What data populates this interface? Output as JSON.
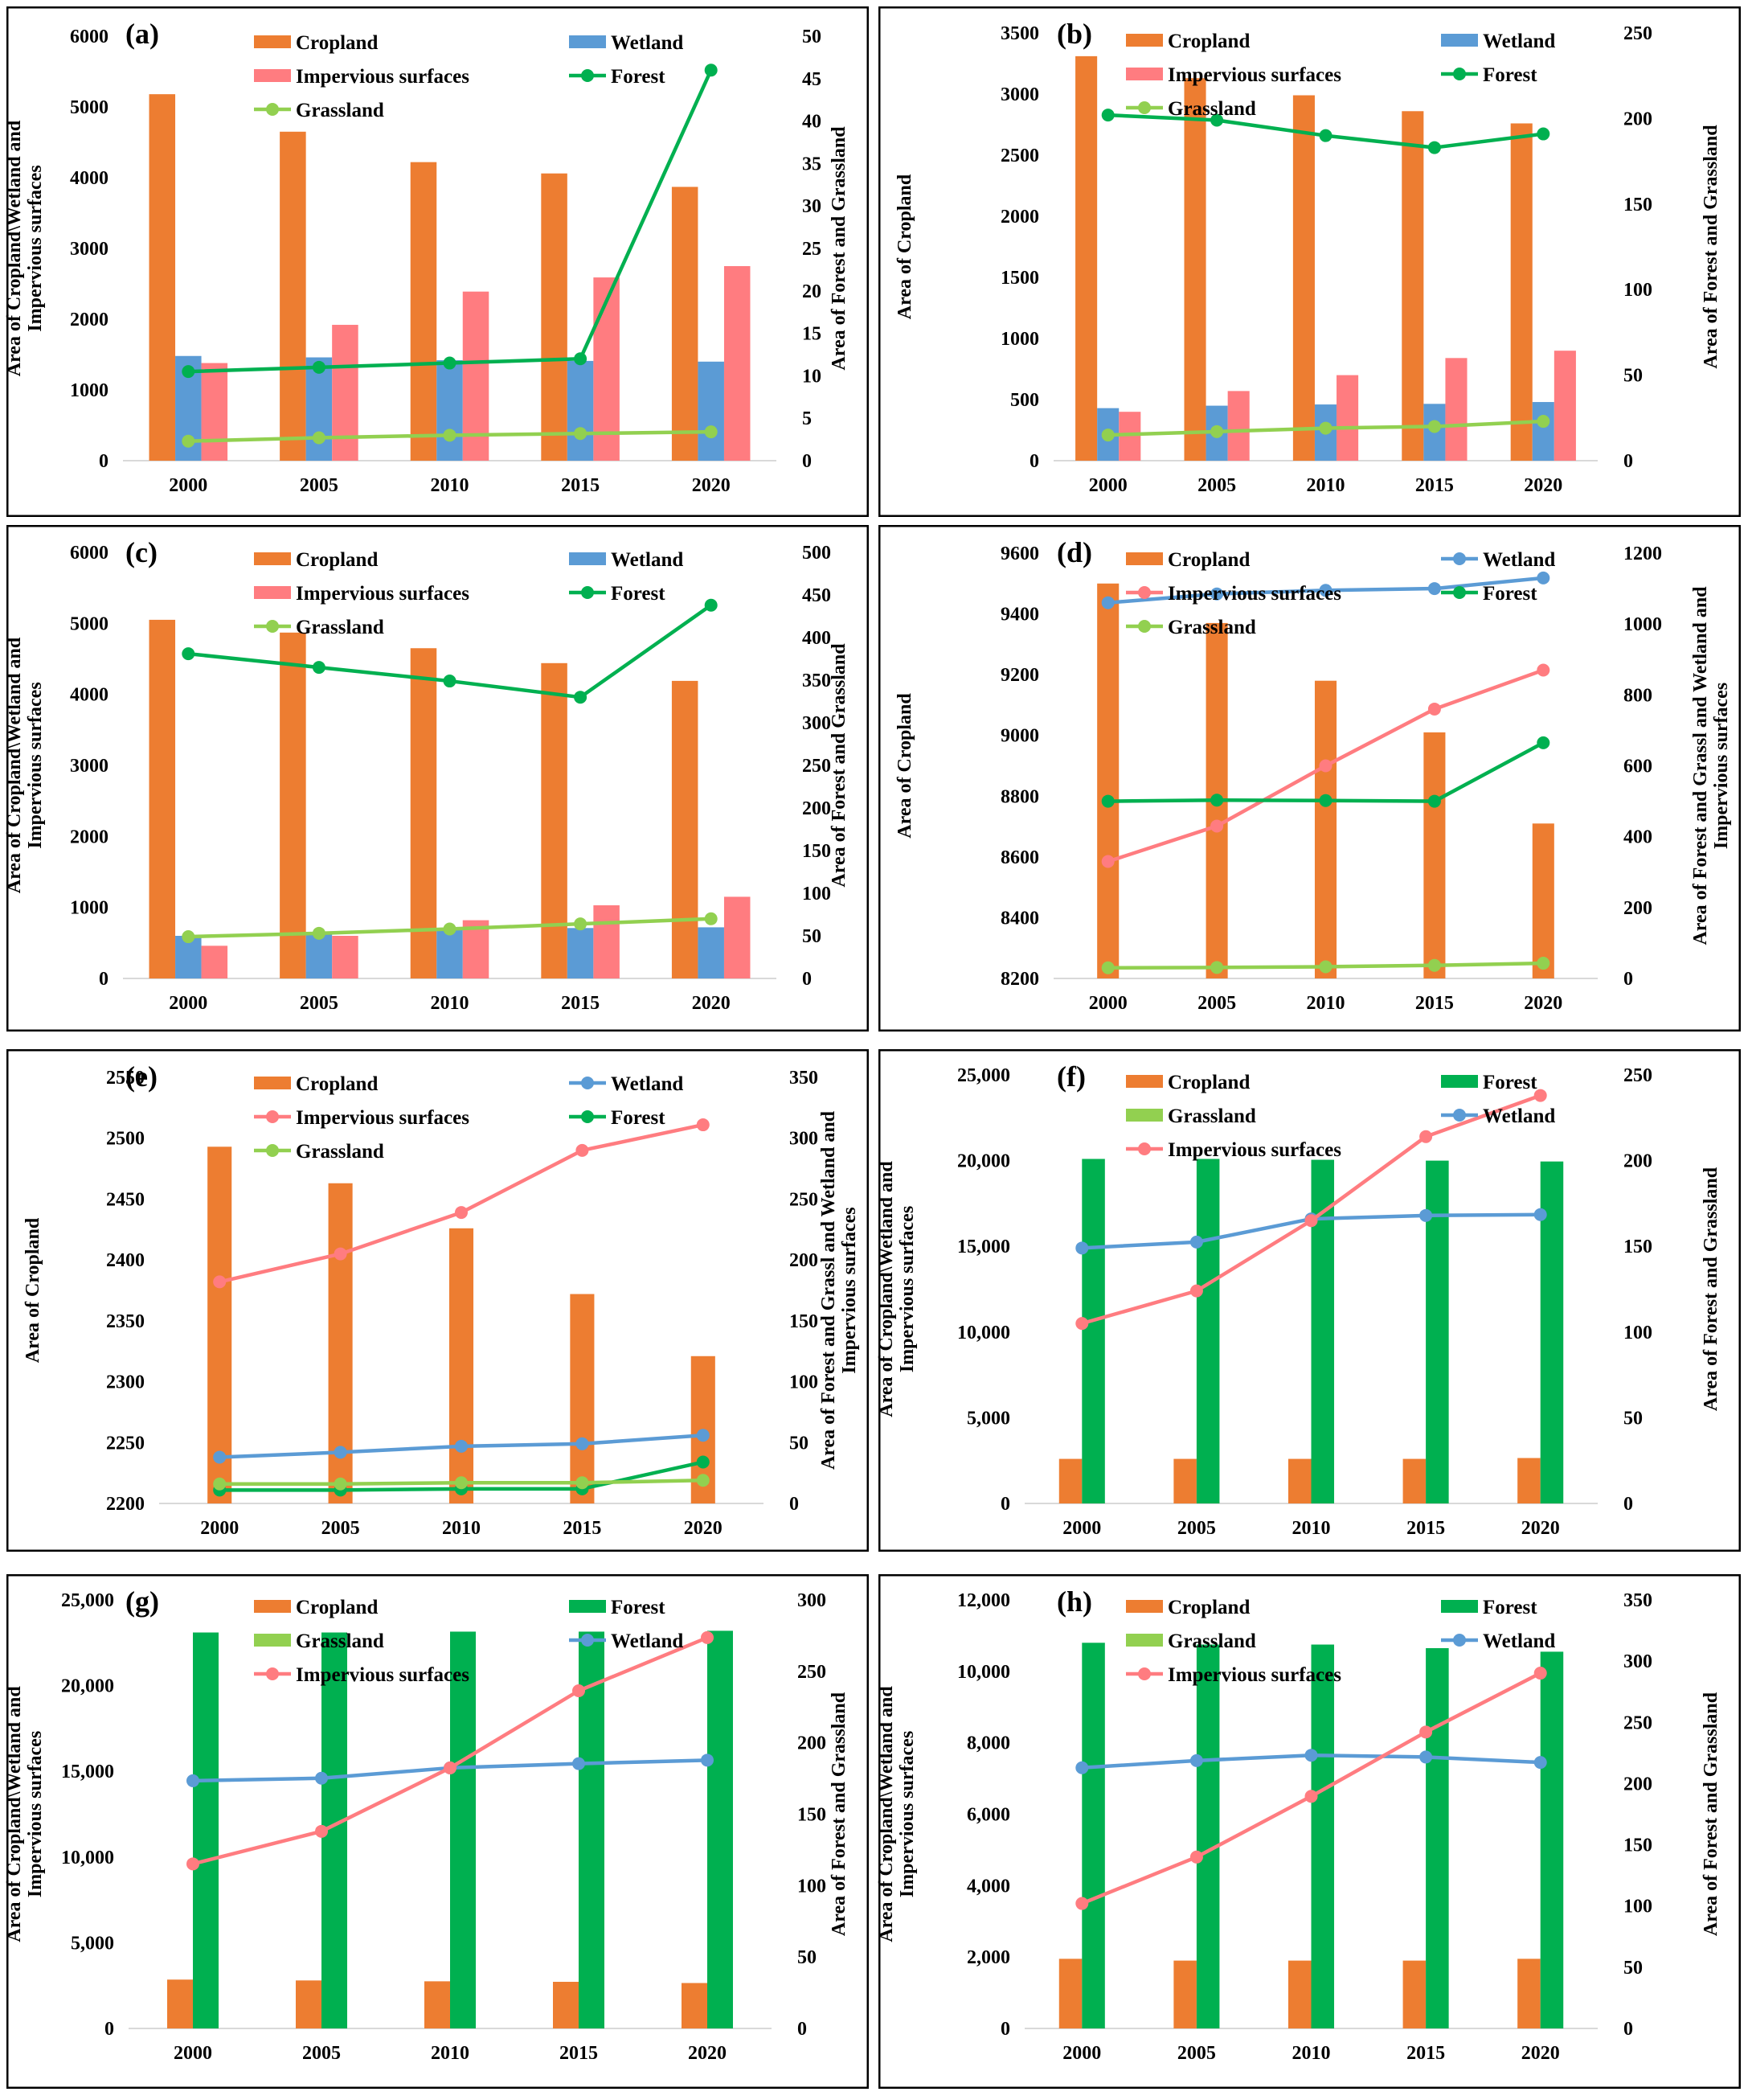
{
  "colors": {
    "Cropland": "#ed7d31",
    "Wetland": "#5b9bd5",
    "Impervious surfaces": "#ff7c80",
    "Forest": "#00b050",
    "Grassland": "#92d050"
  },
  "chart_data": [
    {
      "type": "bar",
      "label": "(a)",
      "categories": [
        "2000",
        "2005",
        "2010",
        "2015",
        "2020"
      ],
      "ylabel": "Area of Cropland\\Wetland and Impervious surfaces",
      "y2label": "Area of Forest and Grassland",
      "ylim": [
        0,
        6000
      ],
      "yticks": [
        "0",
        "1000",
        "2000",
        "3000",
        "4000",
        "5000",
        "6000"
      ],
      "y2lim": [
        0,
        50
      ],
      "y2ticks": [
        "0",
        "5",
        "10",
        "15",
        "20",
        "25",
        "30",
        "35",
        "40",
        "45",
        "50"
      ],
      "bars": [
        {
          "name": "Cropland",
          "values": [
            5180,
            4650,
            4220,
            4060,
            3870
          ]
        },
        {
          "name": "Wetland",
          "values": [
            1480,
            1460,
            1420,
            1410,
            1400
          ]
        },
        {
          "name": "Impervious surfaces",
          "values": [
            1380,
            1920,
            2390,
            2590,
            2750
          ]
        }
      ],
      "lines": [
        {
          "name": "Forest",
          "axis": "right",
          "values": [
            10.5,
            11,
            11.5,
            12,
            46
          ]
        },
        {
          "name": "Grassland",
          "axis": "right",
          "values": [
            2.3,
            2.7,
            3,
            3.2,
            3.4
          ]
        }
      ],
      "legend": [
        {
          "name": "Cropland",
          "kind": "bar"
        },
        {
          "name": "Wetland",
          "kind": "bar"
        },
        {
          "name": "Impervious surfaces",
          "kind": "bar"
        },
        {
          "name": "Forest",
          "kind": "line"
        },
        {
          "name": "Grassland",
          "kind": "line"
        }
      ]
    },
    {
      "type": "bar",
      "label": "(b)",
      "categories": [
        "2000",
        "2005",
        "2010",
        "2015",
        "2020"
      ],
      "ylabel": "Area of Cropland",
      "y2label": "Area of Forest and Grassland",
      "ylim": [
        0,
        3500
      ],
      "yticks": [
        "0",
        "500",
        "1000",
        "1500",
        "2000",
        "2500",
        "3000",
        "3500"
      ],
      "y2lim": [
        0,
        250
      ],
      "y2ticks": [
        "0",
        "50",
        "100",
        "150",
        "200",
        "250"
      ],
      "bars": [
        {
          "name": "Cropland",
          "values": [
            3310,
            3130,
            2990,
            2860,
            2760
          ]
        },
        {
          "name": "Wetland",
          "values": [
            430,
            450,
            460,
            465,
            480
          ]
        },
        {
          "name": "Impervious surfaces",
          "values": [
            400,
            570,
            700,
            840,
            900
          ]
        }
      ],
      "lines": [
        {
          "name": "Forest",
          "axis": "right",
          "values": [
            202,
            199,
            190,
            183,
            191
          ]
        },
        {
          "name": "Grassland",
          "axis": "right",
          "values": [
            15,
            17,
            19,
            20,
            23
          ]
        }
      ],
      "legend": [
        {
          "name": "Cropland",
          "kind": "bar"
        },
        {
          "name": "Wetland",
          "kind": "bar"
        },
        {
          "name": "Impervious surfaces",
          "kind": "bar"
        },
        {
          "name": "Forest",
          "kind": "line"
        },
        {
          "name": "Grassland",
          "kind": "line"
        }
      ]
    },
    {
      "type": "bar",
      "label": "(c)",
      "categories": [
        "2000",
        "2005",
        "2010",
        "2015",
        "2020"
      ],
      "ylabel": "Area of Cropland\\Wetland and Impervious surfaces",
      "y2label": "Area of Forest and Grassland",
      "ylim": [
        0,
        6000
      ],
      "yticks": [
        "0",
        "1000",
        "2000",
        "3000",
        "4000",
        "5000",
        "6000"
      ],
      "y2lim": [
        0,
        500
      ],
      "y2ticks": [
        "0",
        "50",
        "100",
        "150",
        "200",
        "250",
        "300",
        "350",
        "400",
        "450",
        "500"
      ],
      "bars": [
        {
          "name": "Cropland",
          "values": [
            5050,
            4870,
            4650,
            4440,
            4190
          ]
        },
        {
          "name": "Wetland",
          "values": [
            600,
            650,
            700,
            710,
            720
          ]
        },
        {
          "name": "Impervious surfaces",
          "values": [
            460,
            600,
            820,
            1030,
            1150
          ]
        }
      ],
      "lines": [
        {
          "name": "Forest",
          "axis": "right",
          "values": [
            381,
            365,
            349,
            330,
            438
          ]
        },
        {
          "name": "Grassland",
          "axis": "right",
          "values": [
            49,
            53,
            58,
            64,
            70
          ]
        }
      ],
      "legend": [
        {
          "name": "Cropland",
          "kind": "bar"
        },
        {
          "name": "Wetland",
          "kind": "bar"
        },
        {
          "name": "Impervious surfaces",
          "kind": "bar"
        },
        {
          "name": "Forest",
          "kind": "line"
        },
        {
          "name": "Grassland",
          "kind": "line"
        }
      ]
    },
    {
      "type": "bar",
      "label": "(d)",
      "categories": [
        "2000",
        "2005",
        "2010",
        "2015",
        "2020"
      ],
      "ylabel": "Area of Cropland",
      "y2label": "Area of Forest and Grassl and Wetland and Impervious surfaces",
      "ylim": [
        8200,
        9600
      ],
      "yticks": [
        "8200",
        "8400",
        "8600",
        "8800",
        "9000",
        "9200",
        "9400",
        "9600"
      ],
      "y2lim": [
        0,
        1200
      ],
      "y2ticks": [
        "0",
        "200",
        "400",
        "600",
        "800",
        "1000",
        "1200"
      ],
      "bars": [
        {
          "name": "Cropland",
          "values": [
            9500,
            9370,
            9180,
            9010,
            8710
          ]
        }
      ],
      "lines": [
        {
          "name": "Wetland",
          "axis": "right",
          "values": [
            1060,
            1085,
            1095,
            1100,
            1130
          ]
        },
        {
          "name": "Impervious surfaces",
          "axis": "right",
          "values": [
            330,
            430,
            600,
            760,
            870
          ]
        },
        {
          "name": "Forest",
          "axis": "right",
          "values": [
            500,
            503,
            502,
            500,
            665
          ]
        },
        {
          "name": "Grassland",
          "axis": "right",
          "values": [
            30,
            31,
            33,
            37,
            43
          ]
        }
      ],
      "legend": [
        {
          "name": "Cropland",
          "kind": "bar"
        },
        {
          "name": "Wetland",
          "kind": "line"
        },
        {
          "name": "Impervious surfaces",
          "kind": "line"
        },
        {
          "name": "Forest",
          "kind": "line"
        },
        {
          "name": "Grassland",
          "kind": "line"
        }
      ]
    },
    {
      "type": "bar",
      "label": "(e)",
      "categories": [
        "2000",
        "2005",
        "2010",
        "2015",
        "2020"
      ],
      "ylabel": "Area of Cropland",
      "y2label": "Area of Forest and Grassl and Wetland and Impervious surfaces",
      "ylim": [
        2200,
        2550
      ],
      "yticks": [
        "2200",
        "2250",
        "2300",
        "2350",
        "2400",
        "2450",
        "2500",
        "2550"
      ],
      "y2lim": [
        0,
        350
      ],
      "y2ticks": [
        "0",
        "50",
        "100",
        "150",
        "200",
        "250",
        "300",
        "350"
      ],
      "bars": [
        {
          "name": "Cropland",
          "values": [
            2493,
            2463,
            2426,
            2372,
            2321
          ]
        }
      ],
      "lines": [
        {
          "name": "Impervious surfaces",
          "axis": "right",
          "values": [
            182,
            205,
            239,
            290,
            311
          ]
        },
        {
          "name": "Wetland",
          "axis": "right",
          "values": [
            38,
            42,
            47,
            49,
            56
          ]
        },
        {
          "name": "Forest",
          "axis": "right",
          "values": [
            11,
            11,
            12,
            12,
            34
          ]
        },
        {
          "name": "Grassland",
          "axis": "right",
          "values": [
            16,
            16,
            17,
            17,
            19
          ]
        }
      ],
      "legend": [
        {
          "name": "Cropland",
          "kind": "bar"
        },
        {
          "name": "Wetland",
          "kind": "line"
        },
        {
          "name": "Impervious surfaces",
          "kind": "line"
        },
        {
          "name": "Forest",
          "kind": "line"
        },
        {
          "name": "Grassland",
          "kind": "line"
        }
      ]
    },
    {
      "type": "bar",
      "label": "(f)",
      "categories": [
        "2000",
        "2005",
        "2010",
        "2015",
        "2020"
      ],
      "ylabel": "Area of Cropland\\Wetland and Impervious surfaces",
      "y2label": "Area of Forest and Grassland",
      "ylim": [
        0,
        25000
      ],
      "yticks": [
        "0",
        "5,000",
        "10,000",
        "15,000",
        "20,000",
        "25,000"
      ],
      "y2lim": [
        0,
        250
      ],
      "y2ticks": [
        "0",
        "50",
        "100",
        "150",
        "200",
        "250"
      ],
      "bars": [
        {
          "name": "Cropland",
          "values": [
            2600,
            2600,
            2600,
            2600,
            2650
          ]
        },
        {
          "name": "Forest",
          "values": [
            20100,
            20100,
            20050,
            20000,
            19950
          ]
        }
      ],
      "lines": [
        {
          "name": "Wetland",
          "axis": "left",
          "values": [
            14900,
            15250,
            16600,
            16800,
            16850
          ]
        },
        {
          "name": "Impervious surfaces",
          "axis": "left",
          "values": [
            10500,
            12400,
            16500,
            21400,
            23800
          ]
        }
      ],
      "legend": [
        {
          "name": "Cropland",
          "kind": "bar"
        },
        {
          "name": "Forest",
          "kind": "bar"
        },
        {
          "name": "Grassland",
          "kind": "bar"
        },
        {
          "name": "Wetland",
          "kind": "line"
        },
        {
          "name": "Impervious surfaces",
          "kind": "line"
        }
      ]
    },
    {
      "type": "bar",
      "label": "(g)",
      "categories": [
        "2000",
        "2005",
        "2010",
        "2015",
        "2020"
      ],
      "ylabel": "Area of Cropland\\Wetland and Impervious surfaces",
      "y2label": "Area of Forest and Grassland",
      "ylim": [
        0,
        25000
      ],
      "yticks": [
        "0",
        "5,000",
        "10,000",
        "15,000",
        "20,000",
        "25,000"
      ],
      "y2lim": [
        0,
        300
      ],
      "y2ticks": [
        "0",
        "50",
        "100",
        "150",
        "200",
        "250",
        "300"
      ],
      "bars": [
        {
          "name": "Cropland",
          "values": [
            2850,
            2800,
            2750,
            2720,
            2650
          ]
        },
        {
          "name": "Forest",
          "values": [
            23100,
            23100,
            23150,
            23150,
            23200
          ]
        }
      ],
      "lines": [
        {
          "name": "Wetland",
          "axis": "left",
          "values": [
            14450,
            14600,
            15200,
            15450,
            15650
          ]
        },
        {
          "name": "Impervious surfaces",
          "axis": "left",
          "values": [
            9600,
            11500,
            15200,
            19700,
            22800
          ]
        }
      ],
      "legend": [
        {
          "name": "Cropland",
          "kind": "bar"
        },
        {
          "name": "Forest",
          "kind": "bar"
        },
        {
          "name": "Grassland",
          "kind": "bar"
        },
        {
          "name": "Wetland",
          "kind": "line"
        },
        {
          "name": "Impervious surfaces",
          "kind": "line"
        }
      ]
    },
    {
      "type": "bar",
      "label": "(h)",
      "categories": [
        "2000",
        "2005",
        "2010",
        "2015",
        "2020"
      ],
      "ylabel": "Area of Cropland\\Wetland and Impervious surfaces",
      "y2label": "Area of Forest and Grassland",
      "ylim": [
        0,
        12000
      ],
      "yticks": [
        "0",
        "2,000",
        "4,000",
        "6,000",
        "8,000",
        "10,000",
        "12,000"
      ],
      "y2lim": [
        0,
        350
      ],
      "y2ticks": [
        "0",
        "50",
        "100",
        "150",
        "200",
        "250",
        "300",
        "350"
      ],
      "bars": [
        {
          "name": "Cropland",
          "values": [
            1950,
            1900,
            1900,
            1900,
            1950
          ]
        },
        {
          "name": "Forest",
          "values": [
            10800,
            10750,
            10750,
            10650,
            10550
          ]
        }
      ],
      "lines": [
        {
          "name": "Wetland",
          "axis": "left",
          "values": [
            7300,
            7500,
            7650,
            7600,
            7450
          ]
        },
        {
          "name": "Impervious surfaces",
          "axis": "left",
          "values": [
            3500,
            4800,
            6500,
            8300,
            9950
          ]
        }
      ],
      "legend": [
        {
          "name": "Cropland",
          "kind": "bar"
        },
        {
          "name": "Forest",
          "kind": "bar"
        },
        {
          "name": "Grassland",
          "kind": "bar"
        },
        {
          "name": "Wetland",
          "kind": "line"
        },
        {
          "name": "Impervious surfaces",
          "kind": "line"
        }
      ]
    }
  ]
}
